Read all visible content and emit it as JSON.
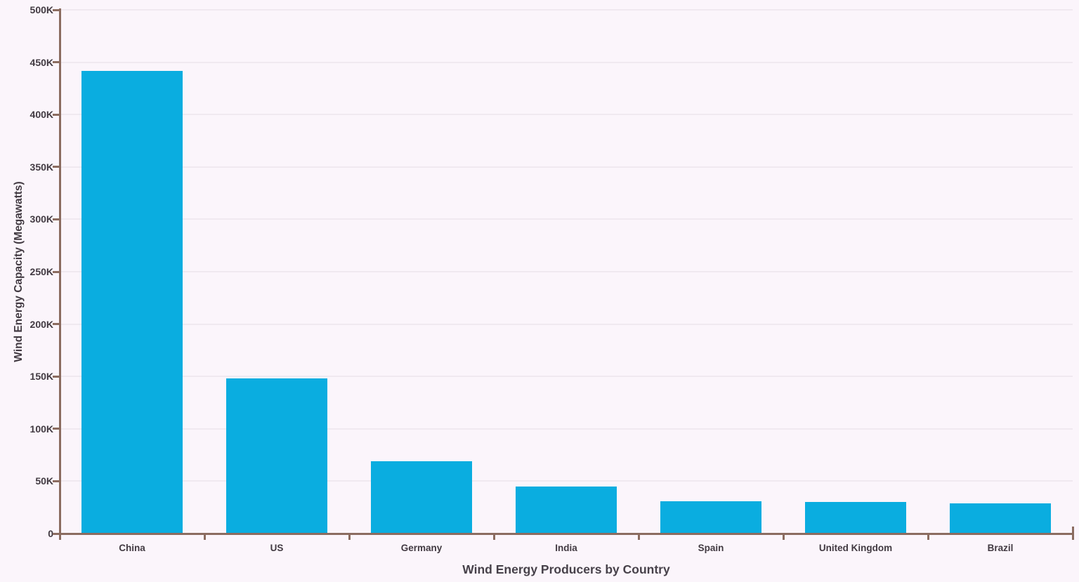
{
  "chart_data": {
    "type": "bar",
    "title": "",
    "xlabel": "Wind Energy Producers by Country",
    "ylabel": "Wind Energy Capacity (Megawatts)",
    "categories": [
      "China",
      "US",
      "Germany",
      "India",
      "Spain",
      "United Kingdom",
      "Brazil"
    ],
    "values": [
      442000,
      148000,
      69000,
      45000,
      31000,
      30000,
      29000
    ],
    "ylim": [
      0,
      500000
    ],
    "ytick_step": 50000,
    "ytick_labels": [
      "0",
      "50K",
      "100K",
      "150K",
      "200K",
      "250K",
      "300K",
      "350K",
      "400K",
      "450K",
      "500K"
    ],
    "grid": true,
    "legend": false
  },
  "colors": {
    "background": "#fbf5fb",
    "bar": "#0aade0",
    "axis": "#8b6c60",
    "text": "#423a42",
    "gridline": "#f0e9f0"
  }
}
